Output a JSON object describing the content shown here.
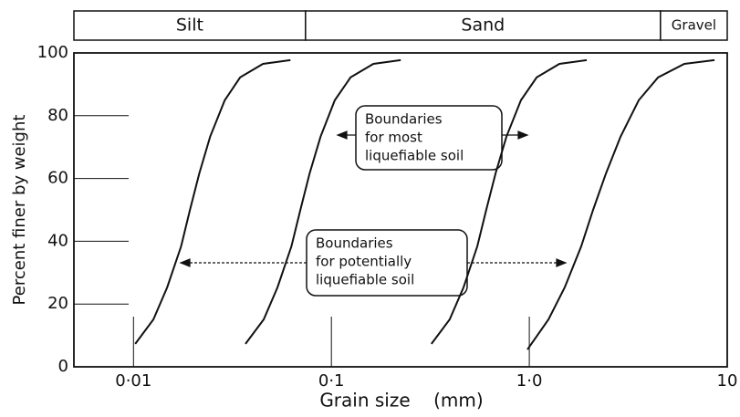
{
  "chart_data": {
    "type": "line",
    "xlabel": "Grain size    (mm)",
    "ylabel": "Percent finer by weight",
    "xscale": "log",
    "xlim": [
      0.005,
      10
    ],
    "ylim": [
      0,
      100
    ],
    "xticks": [
      {
        "value": 0.01,
        "label": "0·01"
      },
      {
        "value": 0.1,
        "label": "0·1"
      },
      {
        "value": 1,
        "label": "1·0"
      },
      10
    ],
    "yticks": [
      0,
      20,
      40,
      60,
      80,
      100
    ],
    "grid": false,
    "zones": [
      {
        "label": "Silt",
        "from": 0.005,
        "to": 0.074
      },
      {
        "label": "Sand",
        "from": 0.074,
        "to": 4.6
      },
      {
        "label": "Gravel",
        "from": 4.6,
        "to": 10
      }
    ],
    "annotations": [
      {
        "lines": [
          "Boundaries",
          "for most",
          "liquefiable soil"
        ]
      },
      {
        "lines": [
          "Boundaries",
          "for potentially",
          "liquefiable soil"
        ]
      }
    ],
    "series": [
      {
        "color": "#111111",
        "x": [
          0.0102,
          0.0126,
          0.0148,
          0.0174,
          0.0193,
          0.0215,
          0.0244,
          0.0289,
          0.0346,
          0.0451,
          0.0621
        ],
        "values": [
          7.3,
          15.1,
          25.3,
          38.4,
          50,
          61.6,
          73.3,
          84.9,
          92.2,
          96.5,
          97.7
        ]
      },
      {
        "color": "#111111",
        "x": [
          0.0368,
          0.0455,
          0.0534,
          0.0628,
          0.0697,
          0.0776,
          0.0881,
          0.104,
          0.125,
          0.163,
          0.224
        ],
        "values": [
          7.3,
          15.1,
          25.3,
          38.4,
          50,
          61.6,
          73.3,
          84.9,
          92.2,
          96.5,
          97.7
        ]
      },
      {
        "color": "#111111",
        "x": [
          0.32,
          0.396,
          0.465,
          0.546,
          0.606,
          0.675,
          0.766,
          0.907,
          1.09,
          1.42,
          1.95
        ],
        "values": [
          7.3,
          15.1,
          25.3,
          38.4,
          50,
          61.6,
          73.3,
          84.9,
          92.2,
          96.5,
          97.7
        ]
      },
      {
        "color": "#111111",
        "x": [
          0.978,
          1.25,
          1.51,
          1.83,
          2.1,
          2.44,
          2.89,
          3.57,
          4.47,
          6.07,
          8.63
        ],
        "values": [
          5.5,
          15.1,
          25.3,
          38.4,
          50,
          61.6,
          73.3,
          84.9,
          92.2,
          96.5,
          97.7
        ]
      }
    ]
  }
}
